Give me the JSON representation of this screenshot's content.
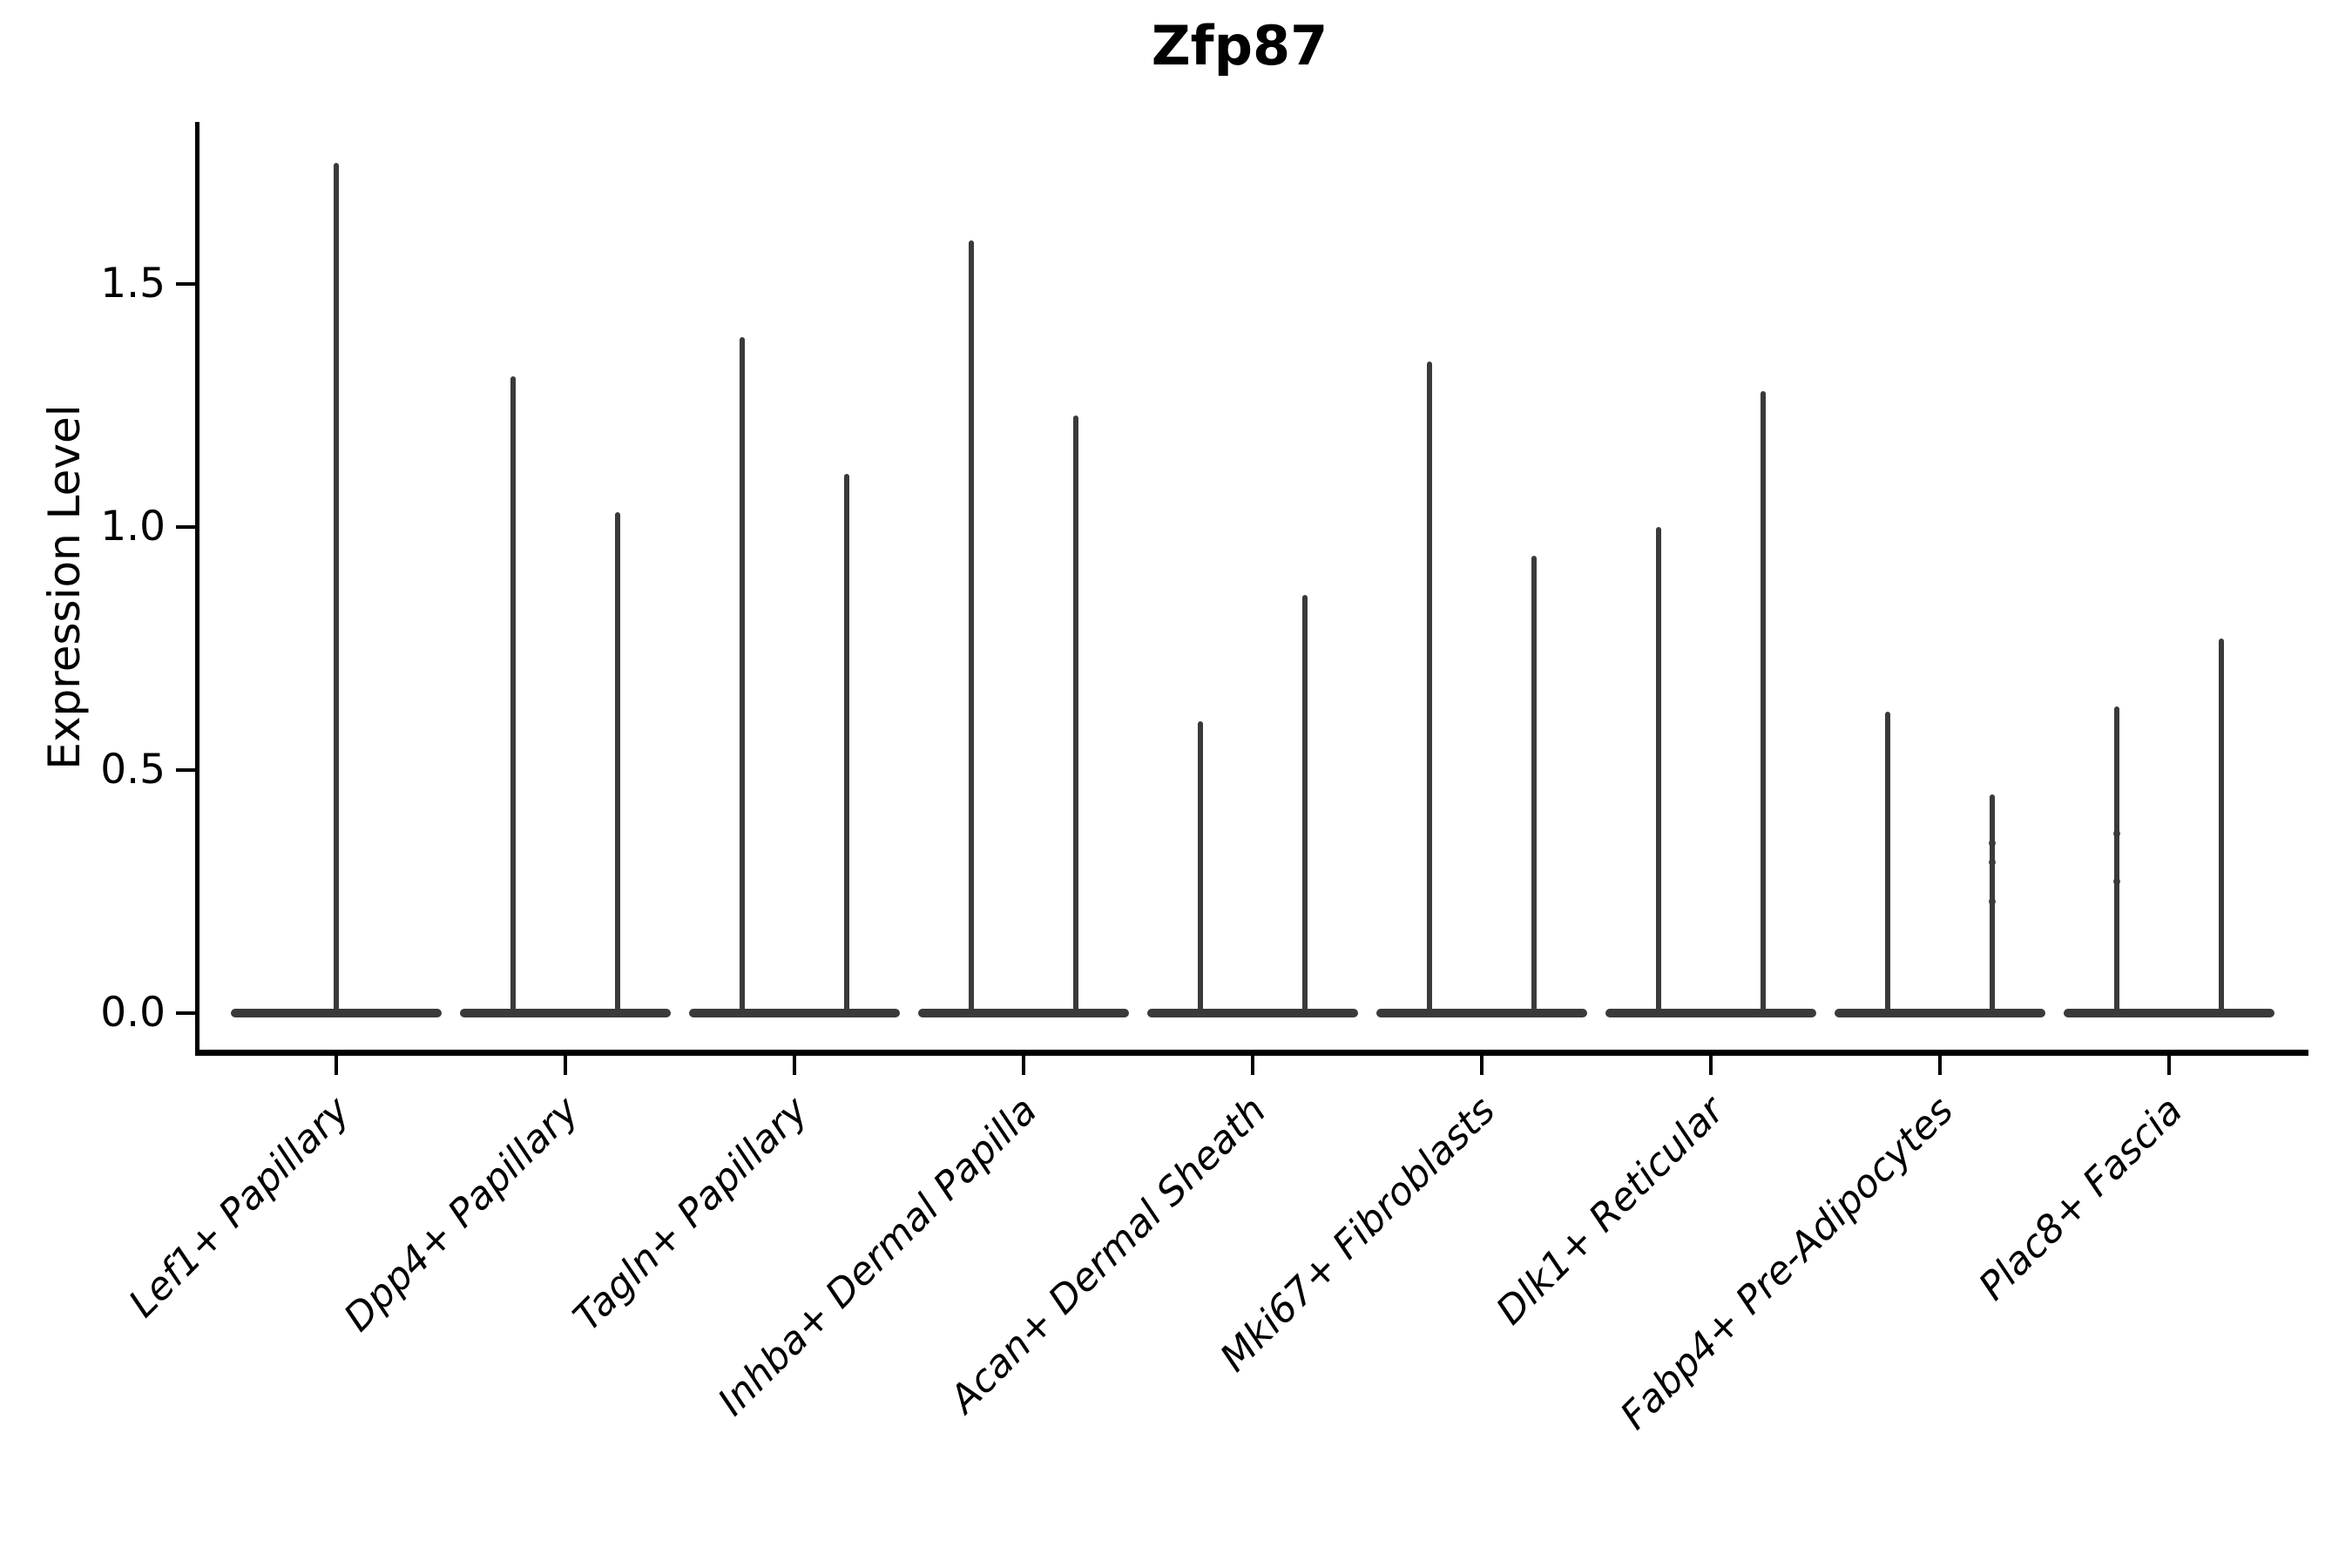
{
  "figure": {
    "title": "Zfp87",
    "ylabel": "Expression Level"
  },
  "chart_data": {
    "type": "violin",
    "title": "Zfp87",
    "xlabel": "",
    "ylabel": "Expression Level",
    "ylim": [
      -0.09,
      1.84
    ],
    "grid": false,
    "legend": "none",
    "violin_color": "#3a3a3a",
    "axis_color": "#000000",
    "ytick_labels": [
      "0.0",
      "0.5",
      "1.0",
      "1.5"
    ],
    "ytick_values": [
      0.0,
      0.5,
      1.0,
      1.5
    ],
    "categories": [
      "Lef1+ Papillary",
      "Dpp4+ Papillary",
      "Tagln+ Papillary",
      "Inhba+ Dermal Papilla",
      "Acan+ Dermal Sheath",
      "Mki67+ Fibroblasts",
      "Dlk1+ Reticular",
      "Fabp4+ Pre-Adipocytes",
      "Plac8+ Fascia"
    ],
    "series_note": "Each category shows needle-thin violins with a flat base at 0; 'maxima' lists the peak Expression Level of each violin in the category (one violin = centered, two violins = left/right pair).",
    "series": [
      {
        "category": "Lef1+ Papillary",
        "maxima": [
          1.75
        ]
      },
      {
        "category": "Dpp4+ Papillary",
        "maxima": [
          1.31,
          1.03
        ]
      },
      {
        "category": "Tagln+ Papillary",
        "maxima": [
          1.39,
          1.11
        ]
      },
      {
        "category": "Inhba+ Dermal Papilla",
        "maxima": [
          1.59,
          1.23
        ]
      },
      {
        "category": "Acan+ Dermal Sheath",
        "maxima": [
          0.6,
          0.86
        ]
      },
      {
        "category": "Mki67+ Fibroblasts",
        "maxima": [
          1.34,
          0.94
        ]
      },
      {
        "category": "Dlk1+ Reticular",
        "maxima": [
          1.0,
          1.28
        ]
      },
      {
        "category": "Fabp4+ Pre-Adipocytes",
        "maxima": [
          0.62,
          0.45
        ],
        "visible_points": [
          [
            1,
            0.35
          ],
          [
            1,
            0.31
          ],
          [
            1,
            0.23
          ]
        ]
      },
      {
        "category": "Plac8+ Fascia",
        "maxima": [
          0.63,
          0.77
        ],
        "visible_points": [
          [
            0,
            0.37
          ],
          [
            0,
            0.27
          ]
        ]
      }
    ]
  }
}
